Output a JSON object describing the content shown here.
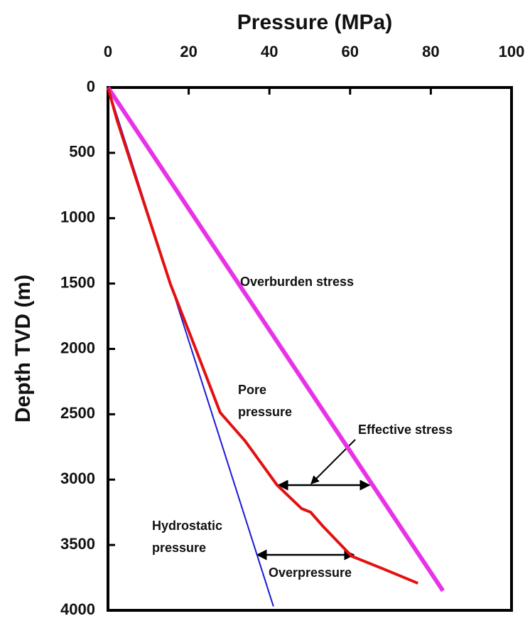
{
  "chart_data": {
    "type": "line",
    "xlabel": "Pressure (MPa)",
    "ylabel": "Depth TVD (m)",
    "xlim": [
      0,
      100
    ],
    "xticks": [
      0,
      20,
      40,
      60,
      80,
      100
    ],
    "ylim": [
      0,
      4000
    ],
    "yticks": [
      0,
      500,
      1000,
      1500,
      2000,
      2500,
      3000,
      3500,
      4000
    ],
    "y_inverted": true,
    "series": [
      {
        "name": "Overburden stress",
        "color": "#e832e8",
        "x": [
          0,
          83
        ],
        "values": [
          0,
          3850
        ]
      },
      {
        "name": "Hydrostatic pressure",
        "color": "#1a1ad8",
        "x": [
          0,
          41
        ],
        "values": [
          0,
          3970
        ]
      },
      {
        "name": "Pore pressure",
        "color": "#e41010",
        "x": [
          0,
          2.3,
          15.5,
          21.7,
          27.8,
          34,
          41.9,
          48,
          50.2,
          53.3,
          60.4,
          68.3,
          76.8
        ],
        "values": [
          0,
          256,
          1507,
          1997,
          2487,
          2705,
          3042,
          3222,
          3249,
          3358,
          3586,
          3684,
          3793
        ]
      }
    ],
    "annotations": [
      [
        "Overburden stress"
      ],
      [
        "Pore",
        "pressure"
      ],
      [
        "Effective stress"
      ],
      [
        "Hydrostatic",
        "pressure"
      ],
      [
        "Overpressure"
      ]
    ]
  }
}
